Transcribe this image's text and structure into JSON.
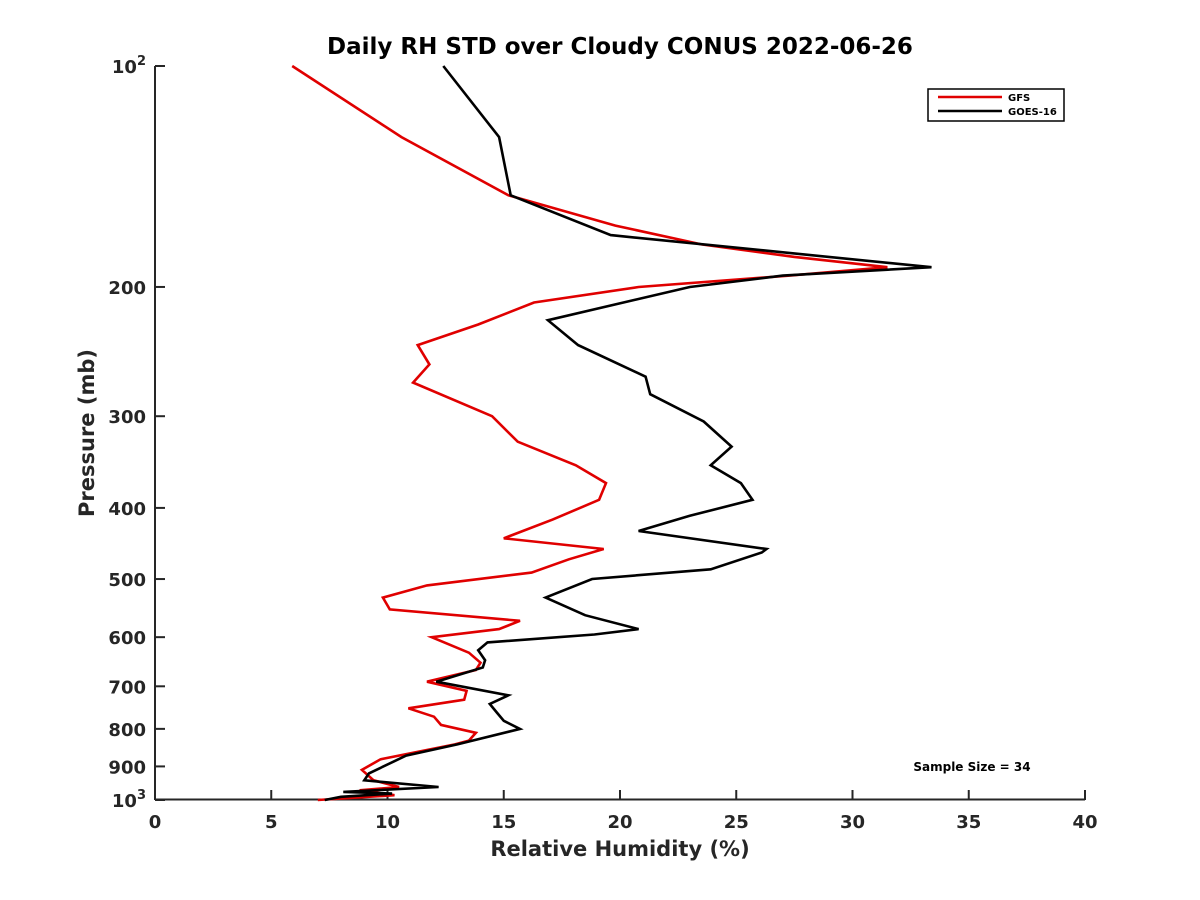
{
  "chart_data": {
    "type": "line",
    "title": "Daily RH STD over Cloudy CONUS 2022-06-26",
    "xlabel": "Relative Humidity (%)",
    "ylabel": "Pressure (mb)",
    "xlim": [
      0,
      40
    ],
    "ylim": [
      100,
      1000
    ],
    "y_scale": "log",
    "y_reversed": true,
    "x_ticks": [
      0,
      5,
      10,
      15,
      20,
      25,
      30,
      35,
      40
    ],
    "x_tick_labels": [
      "0",
      "5",
      "10",
      "15",
      "20",
      "25",
      "30",
      "35",
      "40"
    ],
    "y_ticks": [
      100,
      200,
      300,
      400,
      500,
      600,
      700,
      800,
      900,
      1000
    ],
    "y_tick_labels": [
      {
        "base": "10",
        "exp": "2"
      },
      {
        "base": "200",
        "exp": ""
      },
      {
        "base": "300",
        "exp": ""
      },
      {
        "base": "400",
        "exp": ""
      },
      {
        "base": "500",
        "exp": ""
      },
      {
        "base": "600",
        "exp": ""
      },
      {
        "base": "700",
        "exp": ""
      },
      {
        "base": "800",
        "exp": ""
      },
      {
        "base": "900",
        "exp": ""
      },
      {
        "base": "10",
        "exp": "3"
      }
    ],
    "grid": false,
    "legend": "top-right",
    "annotation": "Sample Size = 34",
    "series": [
      {
        "name": "GFS",
        "color": "#e00000",
        "points": [
          [
            5.9,
            100
          ],
          [
            10.6,
            125
          ],
          [
            15.2,
            150
          ],
          [
            19.8,
            165
          ],
          [
            23.5,
            175
          ],
          [
            27.5,
            182
          ],
          [
            31.5,
            188
          ],
          [
            27.3,
            193
          ],
          [
            20.8,
            200
          ],
          [
            16.3,
            210
          ],
          [
            13.9,
            225
          ],
          [
            11.3,
            240
          ],
          [
            11.8,
            255
          ],
          [
            11.1,
            270
          ],
          [
            14.5,
            300
          ],
          [
            15.6,
            325
          ],
          [
            18.1,
            350
          ],
          [
            19.4,
            370
          ],
          [
            19.1,
            390
          ],
          [
            17.1,
            415
          ],
          [
            15.0,
            440
          ],
          [
            19.3,
            455
          ],
          [
            17.8,
            470
          ],
          [
            16.2,
            490
          ],
          [
            11.7,
            510
          ],
          [
            9.8,
            530
          ],
          [
            10.1,
            550
          ],
          [
            15.7,
            570
          ],
          [
            14.8,
            585
          ],
          [
            11.9,
            600
          ],
          [
            13.5,
            630
          ],
          [
            14.0,
            650
          ],
          [
            13.8,
            665
          ],
          [
            11.7,
            690
          ],
          [
            13.4,
            710
          ],
          [
            13.3,
            730
          ],
          [
            10.9,
            750
          ],
          [
            12.0,
            770
          ],
          [
            12.3,
            790
          ],
          [
            13.8,
            810
          ],
          [
            13.5,
            830
          ],
          [
            12.9,
            840
          ],
          [
            9.7,
            880
          ],
          [
            8.9,
            910
          ],
          [
            9.4,
            940
          ],
          [
            10.5,
            960
          ],
          [
            8.8,
            970
          ],
          [
            10.3,
            985
          ],
          [
            7.0,
            1000
          ]
        ]
      },
      {
        "name": "GOES-16",
        "color": "#000000",
        "points": [
          [
            12.4,
            100
          ],
          [
            14.8,
            125
          ],
          [
            15.3,
            150
          ],
          [
            19.6,
            170
          ],
          [
            33.4,
            188
          ],
          [
            27.0,
            193
          ],
          [
            23.0,
            200
          ],
          [
            16.9,
            222
          ],
          [
            18.2,
            240
          ],
          [
            21.1,
            265
          ],
          [
            21.3,
            280
          ],
          [
            23.6,
            305
          ],
          [
            24.8,
            330
          ],
          [
            23.9,
            350
          ],
          [
            25.2,
            370
          ],
          [
            25.7,
            390
          ],
          [
            23.0,
            410
          ],
          [
            20.8,
            430
          ],
          [
            26.3,
            455
          ],
          [
            26.1,
            460
          ],
          [
            23.9,
            485
          ],
          [
            18.8,
            500
          ],
          [
            16.8,
            530
          ],
          [
            18.5,
            560
          ],
          [
            20.8,
            585
          ],
          [
            18.9,
            595
          ],
          [
            14.3,
            610
          ],
          [
            13.9,
            625
          ],
          [
            14.2,
            645
          ],
          [
            14.1,
            660
          ],
          [
            12.1,
            690
          ],
          [
            15.2,
            720
          ],
          [
            14.4,
            740
          ],
          [
            14.7,
            760
          ],
          [
            15.0,
            780
          ],
          [
            15.7,
            800
          ],
          [
            13.0,
            840
          ],
          [
            10.8,
            870
          ],
          [
            9.2,
            920
          ],
          [
            9.0,
            940
          ],
          [
            12.2,
            960
          ],
          [
            8.1,
            975
          ],
          [
            10.2,
            980
          ],
          [
            8.0,
            990
          ],
          [
            7.3,
            1000
          ]
        ]
      }
    ]
  }
}
